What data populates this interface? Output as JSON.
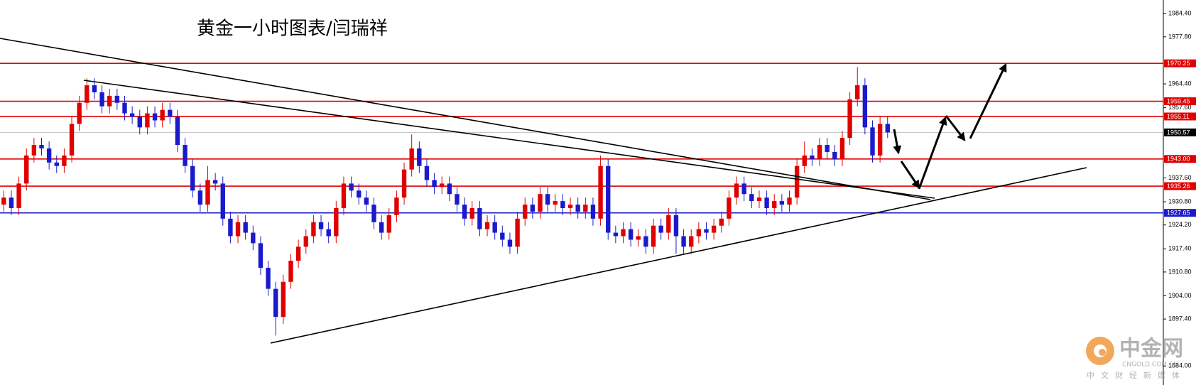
{
  "chart_data": {
    "type": "candlestick",
    "title": "黄金一小时图表/闫瑞祥",
    "up_color": "#e00000",
    "down_color": "#1a1acc",
    "open": [
      1930,
      1932,
      1929,
      1936,
      1944,
      1947,
      1946,
      1942,
      1941,
      1944,
      1953,
      1959,
      1964,
      1962,
      1958,
      1961,
      1959,
      1956,
      1955,
      1952,
      1956,
      1954,
      1957,
      1955,
      1947,
      1941,
      1934,
      1930,
      1937,
      1936,
      1926,
      1921,
      1925,
      1922,
      1919,
      1912,
      1906,
      1898,
      1908,
      1914,
      1918,
      1921,
      1925,
      1923,
      1921,
      1929,
      1936,
      1934,
      1932,
      1930,
      1925,
      1922,
      1927,
      1932,
      1940,
      1946,
      1941,
      1937,
      1935,
      1936,
      1933,
      1930,
      1926,
      1929,
      1923,
      1925,
      1922,
      1920,
      1918,
      1926,
      1930,
      1928,
      1933,
      1930,
      1931,
      1929,
      1930,
      1928,
      1930,
      1926,
      1941,
      1922,
      1921,
      1923,
      1920,
      1921,
      1918,
      1924,
      1922,
      1927,
      1921,
      1918,
      1921,
      1923,
      1922,
      1924,
      1926,
      1932,
      1936,
      1933,
      1931,
      1932,
      1929,
      1931,
      1930,
      1932,
      1941,
      1944,
      1943,
      1947,
      1945,
      1943,
      1949,
      1960,
      1964,
      1952,
      1944,
      1953
    ],
    "high": [
      1934,
      1934,
      1938,
      1946,
      1949,
      1949,
      1948,
      1944,
      1946,
      1955,
      1961,
      1966,
      1966,
      1964,
      1963,
      1963,
      1961,
      1958,
      1957,
      1958,
      1958,
      1959,
      1959,
      1957,
      1949,
      1943,
      1936,
      1941,
      1939,
      1938,
      1928,
      1927,
      1927,
      1924,
      1921,
      1914,
      1908,
      1910,
      1916,
      1920,
      1923,
      1927,
      1927,
      1925,
      1931,
      1938,
      1938,
      1936,
      1934,
      1932,
      1927,
      1929,
      1934,
      1942,
      1950,
      1948,
      1943,
      1939,
      1938,
      1938,
      1935,
      1932,
      1931,
      1931,
      1927,
      1927,
      1924,
      1922,
      1928,
      1932,
      1932,
      1935,
      1935,
      1933,
      1933,
      1932,
      1932,
      1932,
      1932,
      1944,
      1943,
      1924,
      1925,
      1925,
      1923,
      1923,
      1926,
      1926,
      1929,
      1929,
      1923,
      1923,
      1925,
      1925,
      1926,
      1928,
      1934,
      1938,
      1938,
      1935,
      1934,
      1934,
      1933,
      1933,
      1934,
      1943,
      1948,
      1946,
      1949,
      1949,
      1947,
      1951,
      1962,
      1969.2,
      1966,
      1954,
      1955,
      1955
    ],
    "low": [
      1928,
      1927,
      1927,
      1934,
      1942,
      1944,
      1940,
      1939,
      1939,
      1942,
      1951,
      1957,
      1960,
      1956,
      1956,
      1957,
      1954,
      1953,
      1950,
      1950,
      1952,
      1952,
      1953,
      1945,
      1939,
      1932,
      1928,
      1928,
      1934,
      1924,
      1919,
      1919,
      1920,
      1917,
      1910,
      1904,
      1892.7,
      1896,
      1906,
      1912,
      1916,
      1919,
      1921,
      1919,
      1919,
      1927,
      1932,
      1930,
      1928,
      1923,
      1920,
      1920,
      1925,
      1930,
      1938,
      1939,
      1935,
      1933,
      1933,
      1931,
      1928,
      1924,
      1924,
      1921,
      1921,
      1920,
      1918,
      1916,
      1916,
      1924,
      1926,
      1926,
      1928,
      1928,
      1927,
      1927,
      1926,
      1926,
      1924,
      1924,
      1920,
      1919,
      1919,
      1918,
      1918,
      1916,
      1916,
      1920,
      1920,
      1916,
      1916,
      1916,
      1919,
      1920,
      1920,
      1922,
      1924,
      1930,
      1931,
      1929,
      1929,
      1927,
      1927,
      1928,
      1928,
      1930,
      1939,
      1941,
      1941,
      1943,
      1941,
      1941,
      1947,
      1958,
      1950,
      1942,
      1942,
      1949
    ],
    "close": [
      1932,
      1929,
      1936,
      1944,
      1947,
      1946,
      1942,
      1941,
      1944,
      1953,
      1959,
      1964,
      1962,
      1958,
      1961,
      1959,
      1956,
      1955,
      1952,
      1956,
      1954,
      1957,
      1955,
      1947,
      1941,
      1934,
      1930,
      1937,
      1936,
      1926,
      1921,
      1925,
      1922,
      1919,
      1912,
      1906,
      1898,
      1908,
      1914,
      1918,
      1921,
      1925,
      1923,
      1921,
      1929,
      1936,
      1934,
      1932,
      1930,
      1925,
      1922,
      1927,
      1932,
      1940,
      1946,
      1941,
      1937,
      1935,
      1936,
      1933,
      1930,
      1926,
      1929,
      1923,
      1925,
      1922,
      1920,
      1918,
      1926,
      1930,
      1928,
      1933,
      1930,
      1931,
      1929,
      1930,
      1928,
      1930,
      1926,
      1941,
      1922,
      1921,
      1923,
      1920,
      1921,
      1918,
      1924,
      1922,
      1927,
      1921,
      1918,
      1921,
      1923,
      1922,
      1924,
      1926,
      1932,
      1936,
      1933,
      1931,
      1932,
      1929,
      1931,
      1930,
      1932,
      1941,
      1944,
      1943,
      1947,
      1945,
      1943,
      1949,
      1960,
      1964,
      1952,
      1944,
      1953,
      1950.57
    ],
    "ylim": [
      1878.6,
      1988.3
    ],
    "yticks": [
      {
        "value": 1984.4,
        "label": "1984.40"
      },
      {
        "value": 1977.8,
        "label": "1977.80"
      },
      {
        "value": 1964.4,
        "label": "1964.40"
      },
      {
        "value": 1957.6,
        "label": "1957.60"
      },
      {
        "value": 1937.6,
        "label": "1937.60"
      },
      {
        "value": 1930.8,
        "label": "1930.80"
      },
      {
        "value": 1924.2,
        "label": "1924.20"
      },
      {
        "value": 1917.4,
        "label": "1917.40"
      },
      {
        "value": 1910.8,
        "label": "1910.80"
      },
      {
        "value": 1904,
        "label": "1904.00"
      },
      {
        "value": 1897.4,
        "label": "1897.40"
      },
      {
        "value": 1884,
        "label": "1884.00"
      }
    ],
    "levels": [
      {
        "price": 1970.25,
        "color": "#e00000"
      },
      {
        "price": 1959.45,
        "color": "#e00000"
      },
      {
        "price": 1955.11,
        "color": "#e00000"
      },
      {
        "price": 1943,
        "price_label": "1943.00",
        "color": "#e00000"
      },
      {
        "price": 1935.26,
        "color": "#e00000"
      },
      {
        "price": 1927.65,
        "color": "#1a1acc"
      }
    ],
    "last_price": 1950.57,
    "watermark": {
      "name": "中金网",
      "domain": "CNGOLD.COM.CN",
      "slogan": "中文财经新媒体"
    }
  }
}
